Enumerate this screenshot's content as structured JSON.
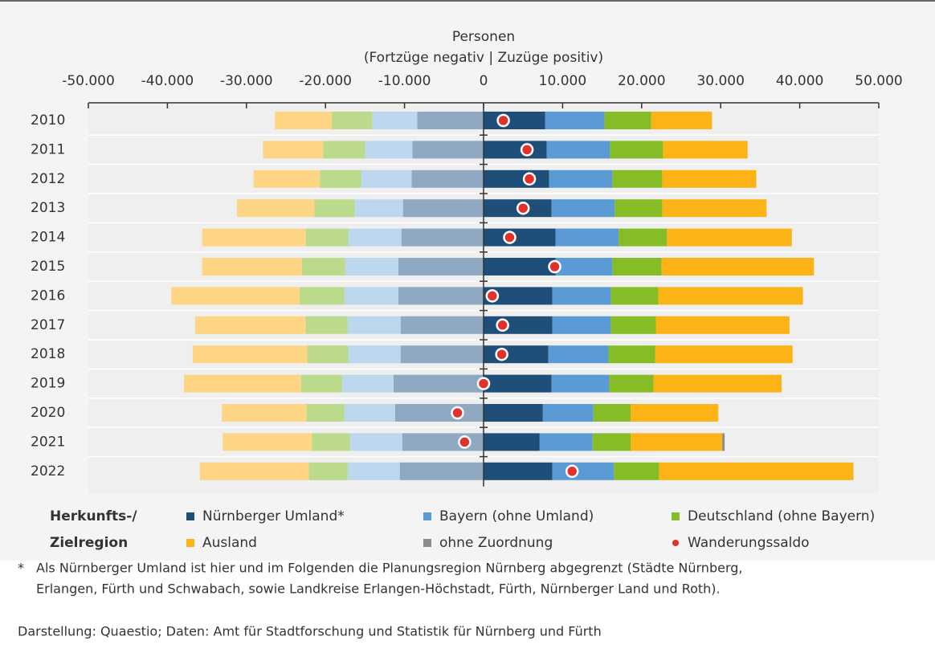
{
  "chart_data": {
    "type": "diverging_bar",
    "title": [
      "Personen",
      "(Fortzüge negativ | Zuzüge positiv)"
    ],
    "categories": [
      "2010",
      "2011",
      "2012",
      "2013",
      "2014",
      "2015",
      "2016",
      "2017",
      "2018",
      "2019",
      "2020",
      "2021",
      "2022"
    ],
    "xlim": [
      -50000,
      50000
    ],
    "xticks": [
      {
        "value": -50000,
        "label": "-50.000"
      },
      {
        "value": -40000,
        "label": "-40.000"
      },
      {
        "value": -30000,
        "label": "-30.000"
      },
      {
        "value": -20000,
        "label": "-20.000"
      },
      {
        "value": -10000,
        "label": "-10.000"
      },
      0,
      {
        "value": 10000,
        "label": "10.000"
      },
      {
        "value": 20000,
        "label": "20.000"
      },
      {
        "value": 30000,
        "label": "30.000"
      },
      {
        "value": 40000,
        "label": "40.000"
      },
      {
        "value": 50000,
        "label": "50.000"
      }
    ],
    "series": [
      {
        "name": "Nürnberger Umland*",
        "color": "#1f4e79",
        "out_color": "#8ea9c1",
        "values": [
          7800,
          8000,
          8300,
          8600,
          9100,
          9100,
          8700,
          8700,
          8200,
          8600,
          7500,
          7100,
          8700
        ],
        "out_values": [
          -8400,
          -9000,
          -9100,
          -10200,
          -10400,
          -10800,
          -10800,
          -10500,
          -10500,
          -11400,
          -11200,
          -10300,
          -10600
        ]
      },
      {
        "name": "Bayern (ohne Umland)",
        "color": "#5b9bd5",
        "out_color": "#bdd7ee",
        "values": [
          7500,
          8000,
          8000,
          8000,
          8000,
          7200,
          7400,
          7400,
          7600,
          7300,
          6400,
          6700,
          7800
        ],
        "out_values": [
          -5700,
          -6000,
          -6400,
          -6100,
          -6700,
          -6700,
          -6800,
          -6700,
          -6600,
          -6500,
          -6400,
          -6600,
          -6600
        ]
      },
      {
        "name": "Deutschland (ohne Bayern)",
        "color": "#86bc25",
        "out_color": "#bcda8c",
        "values": [
          5900,
          6700,
          6300,
          6000,
          6100,
          6200,
          6000,
          5700,
          5900,
          5600,
          4700,
          4800,
          5700
        ],
        "out_values": [
          -5100,
          -5300,
          -5200,
          -5100,
          -5400,
          -5500,
          -5700,
          -5300,
          -5200,
          -5200,
          -4800,
          -4800,
          -4900
        ]
      },
      {
        "name": "Ausland",
        "color": "#fbb315",
        "out_color": "#fdd584",
        "values": [
          7700,
          10700,
          11900,
          13200,
          15800,
          19300,
          18300,
          16900,
          17400,
          16200,
          11100,
          11600,
          24600
        ],
        "out_values": [
          -7200,
          -7600,
          -8400,
          -9800,
          -13100,
          -12600,
          -16200,
          -14000,
          -14500,
          -14800,
          -10700,
          -11300,
          -13800
        ]
      },
      {
        "name": "ohne Zuordnung",
        "color": "#8c8c8c",
        "out_color": "#c4c4c4",
        "values": [
          0,
          0,
          0,
          0,
          0,
          0,
          0,
          0,
          0,
          0,
          0,
          300,
          0
        ],
        "out_values": [
          0,
          0,
          0,
          0,
          0,
          0,
          0,
          0,
          0,
          0,
          0,
          0,
          0
        ]
      }
    ],
    "balance": {
      "name": "Wanderungssaldo",
      "color": "#e0312a",
      "values": [
        2500,
        5500,
        5800,
        5000,
        3300,
        9000,
        1100,
        2400,
        2300,
        0,
        -3300,
        -2400,
        11200
      ]
    },
    "legend_title": [
      "Herkunfts-/",
      "Zielregion"
    ],
    "footnote": [
      "Als Nürnberger Umland ist hier und im Folgenden die Planungsregion Nürnberg abgegrenzt (Städte Nürnberg,",
      "Erlangen, Fürth und Schwabach, sowie Landkreise Erlangen-Höchstadt, Fürth, Nürnberger Land und Roth)."
    ],
    "footnote_mark": "*",
    "source": "Darstellung: Quaestio; Daten: Amt für Stadtforschung und Statistik für Nürnberg und Fürth"
  }
}
